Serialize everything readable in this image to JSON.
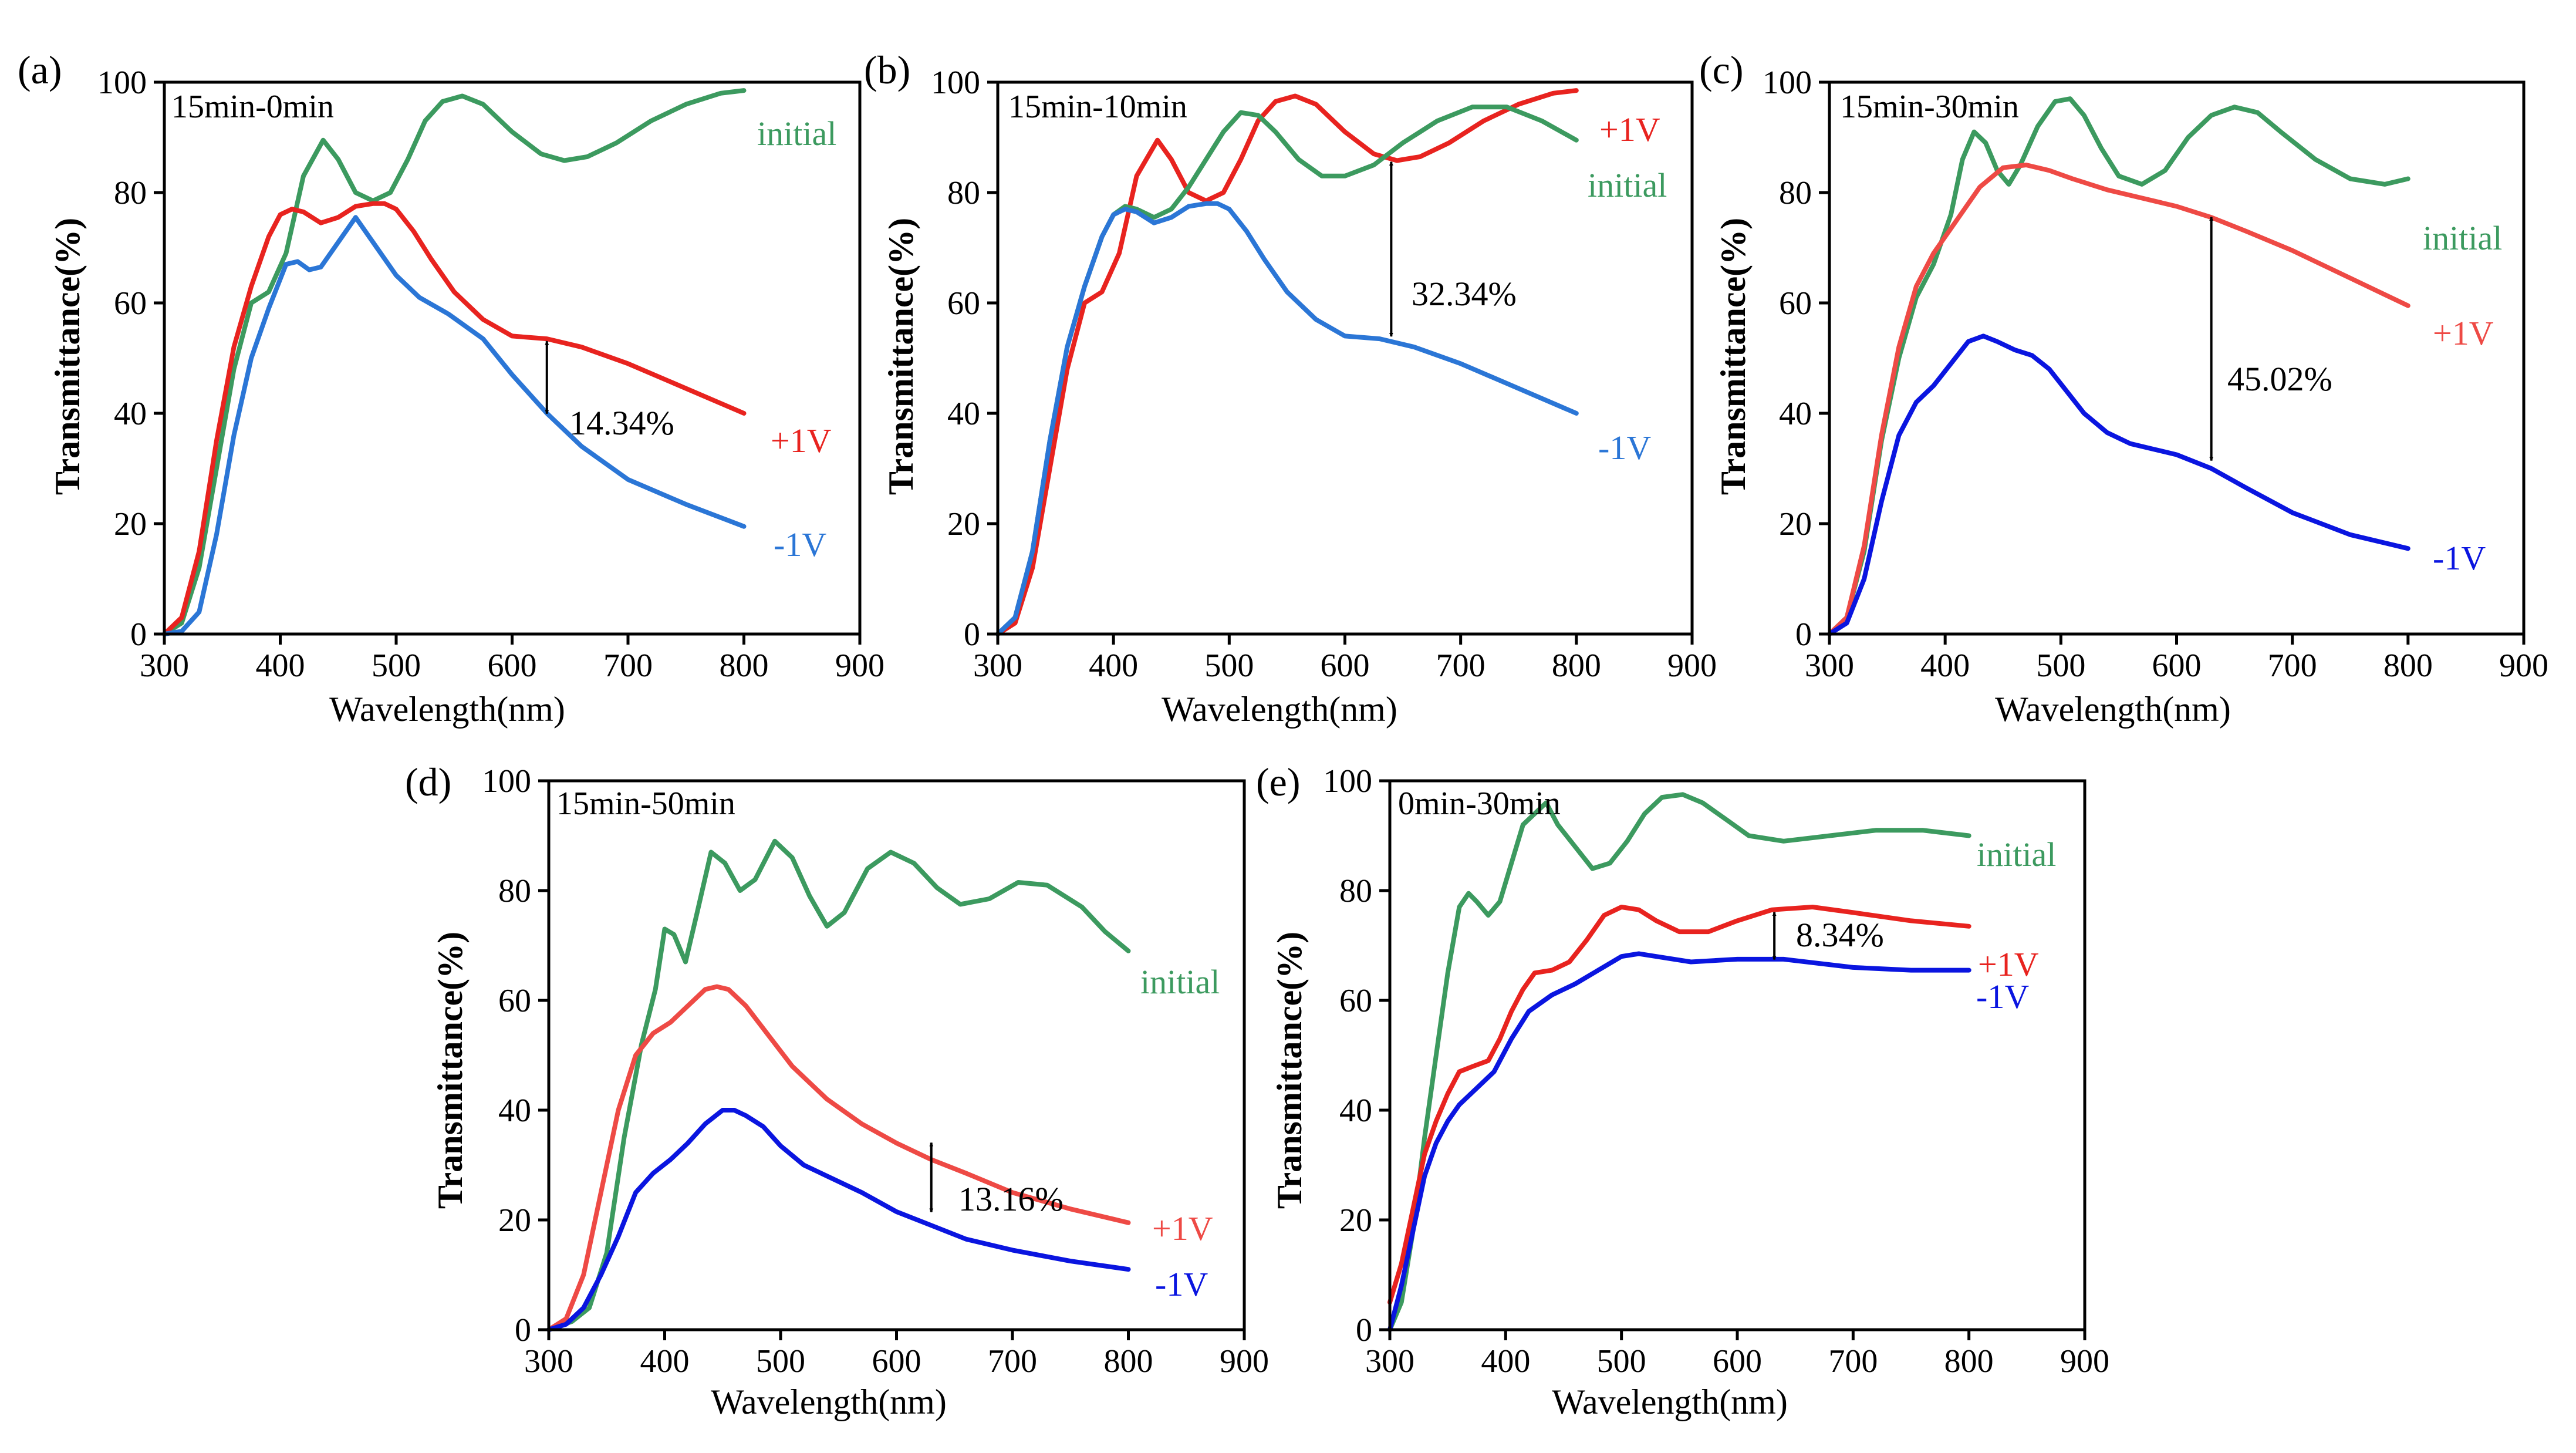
{
  "colors": {
    "initial": "#3c9a5f",
    "plus1v": "#e8231f",
    "minus1v_a": "#2b76d6",
    "minus1v_b": "#2b76d6",
    "minus1v_c": "#0a15e0",
    "minus1v_d": "#0a15e0",
    "minus1v_e": "#0a15e0",
    "plus1v_c": "#ee4a45",
    "plus1v_d": "#ee4a45"
  },
  "chart_data": [
    {
      "type": "line",
      "panel_label": "(a)",
      "title": "15min-0min",
      "xlabel": "Wavelength(nm)",
      "ylabel": "Transmittance(%)",
      "xlim": [
        300,
        900
      ],
      "ylim": [
        0,
        100
      ],
      "xticks": [
        "300",
        "400",
        "500",
        "600",
        "700",
        "800",
        "900"
      ],
      "yticks": [
        "0",
        "20",
        "40",
        "60",
        "80",
        "100"
      ],
      "series": [
        {
          "name": "initial",
          "color_key": "initial",
          "x": [
            300,
            315,
            330,
            345,
            360,
            375,
            390,
            405,
            420,
            437,
            450,
            465,
            480,
            495,
            510,
            525,
            540,
            557,
            575,
            600,
            625,
            645,
            665,
            690,
            720,
            750,
            780,
            800
          ],
          "y": [
            0,
            2,
            12,
            30,
            48,
            60,
            62,
            69,
            83,
            89.5,
            86,
            80,
            78.5,
            80,
            86,
            93,
            96.5,
            97.5,
            96,
            91,
            87,
            85.8,
            86.5,
            89,
            93,
            96,
            98,
            98.5
          ]
        },
        {
          "name": "+1V",
          "color_key": "plus1v",
          "x": [
            300,
            315,
            330,
            345,
            360,
            375,
            390,
            400,
            410,
            420,
            435,
            450,
            465,
            480,
            490,
            500,
            515,
            530,
            550,
            575,
            600,
            630,
            660,
            700,
            750,
            800
          ],
          "y": [
            0,
            3,
            15,
            35,
            52,
            63,
            72,
            76,
            77,
            76.5,
            74.5,
            75.5,
            77.5,
            78,
            78,
            77,
            73,
            68,
            62,
            57,
            54,
            53.5,
            52,
            49,
            44.5,
            40
          ]
        },
        {
          "name": "-1V",
          "color_key": "minus1v_a",
          "x": [
            300,
            315,
            330,
            345,
            360,
            375,
            390,
            405,
            415,
            425,
            435,
            450,
            465,
            480,
            500,
            520,
            545,
            575,
            600,
            630,
            660,
            700,
            750,
            800
          ],
          "y": [
            0,
            0.5,
            4,
            18,
            36,
            50,
            59,
            67,
            67.5,
            66,
            66.5,
            71,
            75.5,
            71,
            65,
            61,
            58,
            53.5,
            47,
            40,
            34,
            28,
            23.5,
            19.5
          ]
        }
      ],
      "series_labels": [
        "initial",
        "+1V",
        "-1V"
      ],
      "annotation": {
        "text": "14.34%",
        "x": 630,
        "y_top": 53.5,
        "y_bottom": 39.5
      }
    },
    {
      "type": "line",
      "panel_label": "(b)",
      "title": "15min-10min",
      "xlabel": "Wavelength(nm)",
      "ylabel": "Transmittance(%)",
      "xlim": [
        300,
        900
      ],
      "ylim": [
        0,
        100
      ],
      "xticks": [
        "300",
        "400",
        "500",
        "600",
        "700",
        "800",
        "900"
      ],
      "yticks": [
        "0",
        "20",
        "40",
        "60",
        "80",
        "100"
      ],
      "series": [
        {
          "name": "+1V",
          "color_key": "plus1v",
          "x": [
            300,
            315,
            330,
            345,
            360,
            375,
            390,
            405,
            420,
            438,
            450,
            465,
            480,
            495,
            510,
            525,
            540,
            557,
            575,
            600,
            625,
            645,
            665,
            690,
            720,
            750,
            780,
            800
          ],
          "y": [
            0,
            2,
            12,
            30,
            48,
            60,
            62,
            69,
            83,
            89.5,
            86,
            80,
            78.5,
            80,
            86,
            93,
            96.5,
            97.5,
            96,
            91,
            87,
            85.8,
            86.5,
            89,
            93,
            96,
            98,
            98.5
          ]
        },
        {
          "name": "initial",
          "color_key": "initial",
          "x": [
            300,
            315,
            330,
            345,
            360,
            375,
            390,
            400,
            410,
            420,
            435,
            450,
            465,
            480,
            495,
            510,
            525,
            540,
            560,
            580,
            600,
            625,
            650,
            680,
            710,
            740,
            770,
            800
          ],
          "y": [
            0,
            3,
            15,
            35,
            52,
            63,
            72,
            76,
            77.5,
            77,
            75.5,
            77,
            81,
            86,
            91,
            94.5,
            94,
            91,
            86,
            83,
            83,
            85,
            89,
            93,
            95.5,
            95.5,
            93,
            89.5
          ]
        },
        {
          "name": "-1V",
          "color_key": "minus1v_b",
          "x": [
            300,
            315,
            330,
            345,
            360,
            375,
            390,
            400,
            410,
            420,
            435,
            450,
            465,
            480,
            490,
            500,
            515,
            530,
            550,
            575,
            600,
            630,
            660,
            700,
            750,
            800
          ],
          "y": [
            0,
            3,
            15,
            35,
            52,
            63,
            72,
            76,
            77,
            76.5,
            74.5,
            75.5,
            77.5,
            78,
            78,
            77,
            73,
            68,
            62,
            57,
            54,
            53.5,
            52,
            49,
            44.5,
            40
          ]
        }
      ],
      "series_labels": [
        "+1V",
        "initial",
        "-1V"
      ],
      "annotation": {
        "text": "32.34%",
        "x": 640,
        "y_top": 86,
        "y_bottom": 53.5
      }
    },
    {
      "type": "line",
      "panel_label": "(c)",
      "title": "15min-30min",
      "xlabel": "Wavelength(nm)",
      "ylabel": "Transmittance(%)",
      "xlim": [
        300,
        900
      ],
      "ylim": [
        0,
        100
      ],
      "xticks": [
        "300",
        "400",
        "500",
        "600",
        "700",
        "800",
        "900"
      ],
      "yticks": [
        "0",
        "20",
        "40",
        "60",
        "80",
        "100"
      ],
      "series": [
        {
          "name": "initial",
          "color_key": "initial",
          "x": [
            300,
            315,
            330,
            345,
            360,
            375,
            390,
            405,
            415,
            425,
            435,
            445,
            455,
            465,
            480,
            495,
            508,
            520,
            535,
            550,
            570,
            590,
            610,
            630,
            650,
            670,
            690,
            720,
            750,
            780,
            800
          ],
          "y": [
            0,
            3,
            15,
            35,
            50,
            61,
            67,
            76,
            86,
            91,
            89,
            84,
            81.5,
            85,
            92,
            96.5,
            97,
            94,
            88,
            83,
            81.5,
            84,
            90,
            94,
            95.5,
            94.5,
            91,
            86,
            82.5,
            81.5,
            82.5
          ]
        },
        {
          "name": "+1V",
          "color_key": "plus1v_c",
          "x": [
            300,
            315,
            330,
            345,
            360,
            375,
            390,
            410,
            430,
            450,
            470,
            490,
            510,
            540,
            570,
            600,
            630,
            660,
            700,
            750,
            800
          ],
          "y": [
            0,
            3,
            16,
            36,
            52,
            63,
            69,
            75,
            81,
            84.5,
            85,
            84,
            82.5,
            80.5,
            79,
            77.5,
            75.5,
            73,
            69.5,
            64.5,
            59.5
          ]
        },
        {
          "name": "-1V",
          "color_key": "minus1v_c",
          "x": [
            300,
            315,
            330,
            345,
            360,
            375,
            390,
            405,
            420,
            433,
            445,
            460,
            475,
            490,
            505,
            520,
            540,
            560,
            580,
            600,
            630,
            660,
            700,
            750,
            800
          ],
          "y": [
            0,
            2,
            10,
            24,
            36,
            42,
            45,
            49,
            53,
            54,
            53,
            51.5,
            50.5,
            48,
            44,
            40,
            36.5,
            34.5,
            33.5,
            32.5,
            30,
            26.5,
            22,
            18,
            15.5
          ]
        }
      ],
      "series_labels": [
        "initial",
        "+1V",
        "-1V"
      ],
      "annotation": {
        "text": "45.02%",
        "x": 630,
        "y_top": 76,
        "y_bottom": 31
      }
    },
    {
      "type": "line",
      "panel_label": "(d)",
      "title": "15min-50min",
      "xlabel": "Wavelength(nm)",
      "ylabel": "Transmittance(%)",
      "xlim": [
        300,
        900
      ],
      "ylim": [
        0,
        100
      ],
      "xticks": [
        "300",
        "400",
        "500",
        "600",
        "700",
        "800",
        "900"
      ],
      "yticks": [
        "0",
        "20",
        "40",
        "60",
        "80",
        "100"
      ],
      "series": [
        {
          "name": "initial",
          "color_key": "initial",
          "x": [
            300,
            320,
            335,
            350,
            365,
            380,
            392,
            400,
            408,
            418,
            428,
            440,
            452,
            465,
            478,
            495,
            510,
            525,
            540,
            555,
            575,
            595,
            615,
            635,
            655,
            680,
            705,
            730,
            760,
            780,
            800
          ],
          "y": [
            0,
            1.5,
            4,
            14,
            35,
            52,
            62,
            73,
            72,
            67,
            76,
            87,
            85,
            80,
            82,
            89,
            86,
            79,
            73.5,
            76,
            84,
            87,
            85,
            80.5,
            77.5,
            78.5,
            81.5,
            81,
            77,
            72.5,
            69
          ]
        },
        {
          "name": "+1V",
          "color_key": "plus1v_d",
          "x": [
            300,
            315,
            330,
            345,
            360,
            375,
            390,
            405,
            420,
            435,
            445,
            455,
            470,
            490,
            510,
            540,
            570,
            600,
            630,
            660,
            700,
            750,
            800
          ],
          "y": [
            0,
            2,
            10,
            25,
            40,
            50,
            54,
            56,
            59,
            62,
            62.5,
            62,
            59,
            53.5,
            48,
            42,
            37.5,
            34,
            31,
            28.5,
            25,
            22,
            19.5
          ]
        },
        {
          "name": "-1V",
          "color_key": "minus1v_d",
          "x": [
            300,
            315,
            330,
            345,
            360,
            375,
            390,
            405,
            420,
            435,
            450,
            460,
            470,
            485,
            500,
            520,
            540,
            570,
            600,
            630,
            660,
            700,
            750,
            800
          ],
          "y": [
            0,
            1,
            4,
            10,
            17,
            25,
            28.5,
            31,
            34,
            37.5,
            40,
            40,
            39,
            37,
            33.5,
            30,
            28,
            25,
            21.5,
            19,
            16.5,
            14.5,
            12.5,
            11
          ]
        }
      ],
      "series_labels": [
        "initial",
        "+1V",
        "-1V"
      ],
      "annotation": {
        "text": "13.16%",
        "x": 630,
        "y_top": 34.5,
        "y_bottom": 21
      }
    },
    {
      "type": "line",
      "panel_label": "(e)",
      "title": "0min-30min",
      "xlabel": "Wavelength(nm)",
      "ylabel": "Transmittance(%)",
      "xlim": [
        300,
        900
      ],
      "ylim": [
        0,
        100
      ],
      "xticks": [
        "300",
        "400",
        "500",
        "600",
        "700",
        "800",
        "900"
      ],
      "yticks": [
        "0",
        "20",
        "40",
        "60",
        "80",
        "100"
      ],
      "series": [
        {
          "name": "initial",
          "color_key": "initial",
          "x": [
            300,
            310,
            320,
            330,
            340,
            350,
            360,
            368,
            375,
            385,
            395,
            405,
            415,
            425,
            435,
            445,
            460,
            475,
            490,
            505,
            520,
            535,
            553,
            570,
            590,
            610,
            640,
            680,
            720,
            760,
            800
          ],
          "y": [
            0,
            5,
            18,
            35,
            50,
            65,
            77,
            79.5,
            78,
            75.5,
            78,
            85,
            92,
            94,
            96,
            92,
            88,
            84,
            85,
            89,
            94,
            97,
            97.5,
            96,
            93,
            90,
            89,
            90,
            91,
            91,
            90
          ]
        },
        {
          "name": "+1V",
          "color_key": "plus1v",
          "x": [
            300,
            310,
            320,
            330,
            340,
            350,
            360,
            372,
            385,
            395,
            405,
            415,
            425,
            440,
            455,
            470,
            485,
            500,
            515,
            530,
            550,
            575,
            600,
            630,
            665,
            700,
            750,
            800
          ],
          "y": [
            5,
            12,
            22,
            32,
            38,
            43,
            47,
            48,
            49,
            53,
            58,
            62,
            65,
            65.5,
            67,
            71,
            75.5,
            77,
            76.5,
            74.5,
            72.5,
            72.5,
            74.5,
            76.5,
            77,
            76,
            74.5,
            73.5
          ]
        },
        {
          "name": "-1V",
          "color_key": "minus1v_e",
          "x": [
            300,
            310,
            320,
            330,
            340,
            350,
            360,
            375,
            390,
            405,
            420,
            440,
            460,
            480,
            500,
            515,
            530,
            560,
            600,
            640,
            700,
            750,
            800
          ],
          "y": [
            0,
            8,
            18,
            28,
            34,
            38,
            41,
            44,
            47,
            53,
            58,
            61,
            63,
            65.5,
            68,
            68.5,
            68,
            67,
            67.5,
            67.5,
            66,
            65.5,
            65.5
          ]
        }
      ],
      "series_labels": [
        "+1V",
        "-1V",
        "initial"
      ],
      "annotation": {
        "text": "8.34%",
        "x": 632,
        "y_top": 76.5,
        "y_bottom": 67
      }
    }
  ]
}
